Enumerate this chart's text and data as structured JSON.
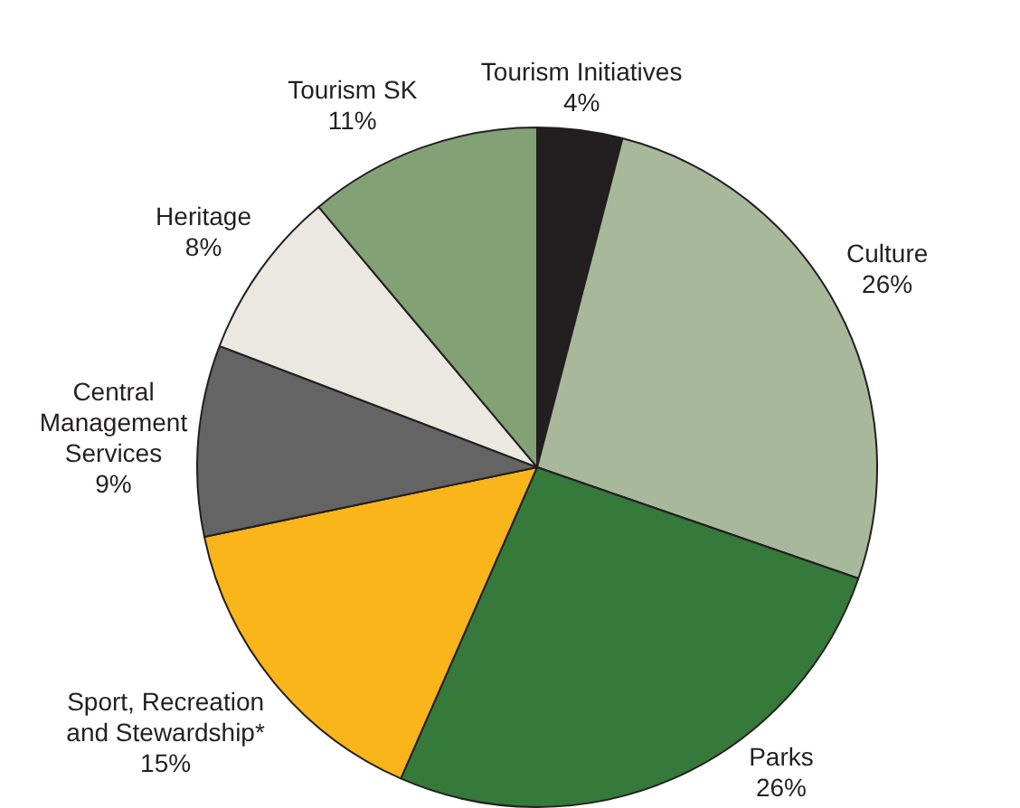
{
  "chart_data": {
    "type": "pie",
    "categories": [
      "Tourism Initiatives",
      "Culture",
      "Parks",
      "Sport, Recreation and Stewardship*",
      "Central Management Services",
      "Heritage",
      "Tourism SK"
    ],
    "values": [
      4,
      26,
      26,
      15,
      9,
      8,
      11
    ],
    "value_labels": [
      "4%",
      "26%",
      "26%",
      "15%",
      "9%",
      "8%",
      "11%"
    ],
    "colors": [
      "#231f20",
      "#a8b89a",
      "#357a3a",
      "#f9b51a",
      "#646464",
      "#ebe7e1",
      "#82a276"
    ],
    "legend": false
  }
}
